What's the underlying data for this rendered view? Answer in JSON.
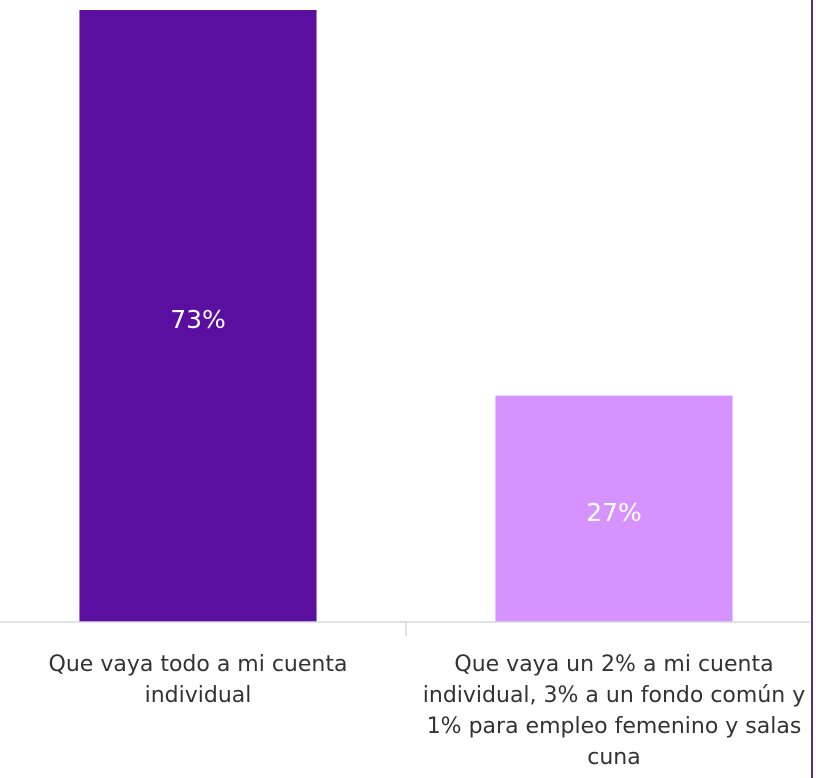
{
  "chart_data": {
    "type": "bar",
    "categories": [
      "Que vaya todo a mi cuenta individual",
      "Que vaya un 2% a mi cuenta individual, 3% a un fondo común y 1% para empleo femenino y salas cuna"
    ],
    "values": [
      73,
      27
    ],
    "value_labels": [
      "73%",
      "27%"
    ],
    "colors": [
      "#5a0fa0",
      "#d693ff"
    ]
  }
}
